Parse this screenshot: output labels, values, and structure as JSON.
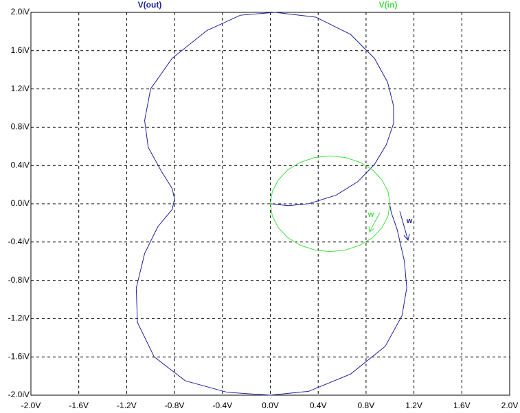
{
  "chart_data": {
    "type": "line",
    "series": [
      {
        "name": "V(out)",
        "color": "#1f1f9a",
        "x": [
          0,
          0.15,
          0.32,
          0.55,
          0.73,
          0.87,
          0.97,
          1.03,
          1.03,
          0.98,
          0.87,
          0.67,
          0.38,
          0.04,
          -0.25,
          -0.53,
          -0.82,
          -1.0,
          -1.05,
          -1.02,
          -0.91,
          -0.82,
          -0.8,
          -0.82,
          -0.94,
          -1.05,
          -1.12,
          -1.11,
          -0.97,
          -0.71,
          -0.36,
          0,
          0.32,
          0.67,
          0.96,
          1.1,
          1.14,
          1.12,
          1.06,
          1.01,
          1.0
        ],
        "values": [
          0,
          -0.02,
          0,
          0.09,
          0.23,
          0.41,
          0.62,
          0.84,
          1.02,
          1.27,
          1.52,
          1.77,
          1.95,
          2.0,
          1.97,
          1.81,
          1.52,
          1.2,
          0.87,
          0.59,
          0.34,
          0.16,
          0.05,
          -0.06,
          -0.24,
          -0.52,
          -0.88,
          -1.24,
          -1.6,
          -1.85,
          -1.97,
          -2.0,
          -1.96,
          -1.78,
          -1.49,
          -1.17,
          -0.88,
          -0.6,
          -0.27,
          -0.09,
          -0.02
        ]
      },
      {
        "name": "V(in)",
        "color": "#44dd44",
        "x": [
          1,
          0.983,
          0.933,
          0.854,
          0.75,
          0.629,
          0.5,
          0.371,
          0.25,
          0.146,
          0.067,
          0.017,
          0,
          0.017,
          0.067,
          0.146,
          0.25,
          0.371,
          0.5,
          0.629,
          0.75,
          0.854,
          0.933,
          0.983,
          1
        ],
        "values": [
          0,
          -0.129,
          -0.25,
          -0.354,
          -0.433,
          -0.483,
          -0.5,
          -0.483,
          -0.433,
          -0.354,
          -0.25,
          -0.129,
          0,
          0.129,
          0.25,
          0.354,
          0.433,
          0.483,
          0.5,
          0.483,
          0.433,
          0.354,
          0.25,
          0.129,
          0
        ]
      }
    ],
    "annotations": [
      {
        "text": "w",
        "color": "#44dd44"
      },
      {
        "text": "w",
        "color": "#1f1f9a"
      }
    ],
    "xlim": [
      -2,
      2
    ],
    "xticks": [
      {
        "value": -2,
        "label": "-2.0V"
      },
      {
        "value": -1.6,
        "label": "-1.6V"
      },
      {
        "value": -1.2,
        "label": "-1.2V"
      },
      {
        "value": -0.8,
        "label": "-0.8V"
      },
      {
        "value": -0.4,
        "label": "-0.4V"
      },
      {
        "value": 0,
        "label": "0.0V"
      },
      {
        "value": 0.4,
        "label": "0.4V"
      },
      {
        "value": 0.8,
        "label": "0.8V"
      },
      {
        "value": 1.2,
        "label": "1.2V"
      },
      {
        "value": 1.6,
        "label": "1.6V"
      },
      {
        "value": 2,
        "label": "2.0V"
      }
    ],
    "ylim": [
      -2,
      2
    ],
    "yticks": [
      {
        "value": -2,
        "label": "-2.0iV"
      },
      {
        "value": -1.6,
        "label": "-1.6iV"
      },
      {
        "value": -1.2,
        "label": "-1.2iV"
      },
      {
        "value": -0.8,
        "label": "-0.8iV"
      },
      {
        "value": -0.4,
        "label": "-0.4iV"
      },
      {
        "value": 0,
        "label": "0.0iV"
      },
      {
        "value": 0.4,
        "label": "0.4iV"
      },
      {
        "value": 0.8,
        "label": "0.8iV"
      },
      {
        "value": 1.2,
        "label": "1.2iV"
      },
      {
        "value": 1.6,
        "label": "1.6iV"
      },
      {
        "value": 2,
        "label": "2.0iV"
      }
    ],
    "grid": true
  }
}
